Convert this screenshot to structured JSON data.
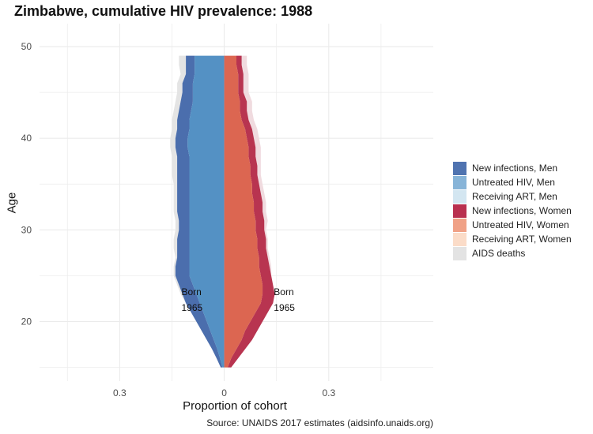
{
  "chart_data": {
    "type": "area",
    "title": "Zimbabwe, cumulative HIV prevalence: 1988",
    "xlabel": "Proportion of cohort",
    "ylabel": "Age",
    "source": "Source: UNAIDS 2017 estimates (aidsinfo.unaids.org)",
    "xlim": [
      -0.53,
      0.6
    ],
    "ylim": [
      13.5,
      52.5
    ],
    "x_ticks": [
      {
        "value": -0.3,
        "label": "0.3"
      },
      {
        "value": 0,
        "label": "0"
      },
      {
        "value": 0.3,
        "label": "0.3"
      }
    ],
    "y_ticks": [
      20,
      30,
      40,
      50
    ],
    "grid": true,
    "legend_position": "right",
    "ages": [
      15,
      16,
      17,
      18,
      19,
      20,
      21,
      22,
      23,
      24,
      25,
      26,
      27,
      28,
      29,
      30,
      31,
      32,
      33,
      34,
      35,
      36,
      37,
      38,
      39,
      40,
      41,
      42,
      43,
      44,
      45,
      46,
      47,
      48,
      49
    ],
    "men": {
      "untreated": [
        0.005,
        0.012,
        0.02,
        0.03,
        0.04,
        0.05,
        0.06,
        0.07,
        0.08,
        0.09,
        0.1,
        0.1,
        0.1,
        0.1,
        0.1,
        0.1,
        0.1,
        0.1,
        0.1,
        0.1,
        0.1,
        0.1,
        0.1,
        0.1,
        0.105,
        0.105,
        0.1,
        0.1,
        0.095,
        0.09,
        0.09,
        0.09,
        0.085,
        0.085,
        0.085
      ],
      "new_infections": [
        0.005,
        0.01,
        0.015,
        0.02,
        0.025,
        0.03,
        0.035,
        0.04,
        0.04,
        0.04,
        0.04,
        0.04,
        0.035,
        0.035,
        0.035,
        0.03,
        0.03,
        0.035,
        0.035,
        0.035,
        0.035,
        0.035,
        0.035,
        0.035,
        0.035,
        0.035,
        0.035,
        0.035,
        0.035,
        0.035,
        0.03,
        0.03,
        0.025,
        0.025,
        0.025
      ],
      "receiving_art": [
        0,
        0,
        0,
        0,
        0,
        0,
        0,
        0,
        0,
        0,
        0,
        0,
        0,
        0,
        0,
        0,
        0,
        0,
        0,
        0,
        0,
        0,
        0,
        0,
        0,
        0,
        0,
        0,
        0,
        0,
        0,
        0,
        0,
        0,
        0
      ],
      "aids_deaths": [
        0,
        0,
        0,
        0,
        0,
        0,
        0,
        0,
        0.005,
        0.005,
        0.005,
        0.005,
        0.005,
        0.01,
        0.01,
        0.01,
        0.01,
        0.01,
        0.01,
        0.01,
        0.01,
        0.015,
        0.015,
        0.015,
        0.015,
        0.015,
        0.015,
        0.015,
        0.015,
        0.015,
        0.015,
        0.015,
        0.015,
        0.02,
        0.02
      ]
    },
    "women": {
      "untreated": [
        0.01,
        0.02,
        0.035,
        0.05,
        0.06,
        0.075,
        0.09,
        0.105,
        0.11,
        0.11,
        0.105,
        0.1,
        0.1,
        0.095,
        0.095,
        0.09,
        0.09,
        0.085,
        0.085,
        0.08,
        0.08,
        0.075,
        0.075,
        0.07,
        0.07,
        0.065,
        0.06,
        0.05,
        0.045,
        0.045,
        0.04,
        0.04,
        0.04,
        0.035,
        0.035
      ],
      "new_infections": [
        0.01,
        0.02,
        0.025,
        0.03,
        0.035,
        0.035,
        0.035,
        0.035,
        0.035,
        0.03,
        0.03,
        0.03,
        0.025,
        0.025,
        0.025,
        0.025,
        0.025,
        0.025,
        0.025,
        0.025,
        0.02,
        0.02,
        0.02,
        0.02,
        0.02,
        0.02,
        0.02,
        0.02,
        0.02,
        0.02,
        0.015,
        0.015,
        0.015,
        0.015,
        0.015
      ],
      "receiving_art": [
        0,
        0,
        0,
        0,
        0,
        0,
        0,
        0,
        0,
        0,
        0,
        0,
        0,
        0,
        0,
        0,
        0,
        0,
        0,
        0,
        0,
        0,
        0,
        0,
        0,
        0,
        0,
        0,
        0,
        0,
        0,
        0,
        0,
        0,
        0
      ],
      "aids_deaths": [
        0,
        0,
        0,
        0,
        0,
        0,
        0,
        0,
        0,
        0,
        0,
        0.005,
        0.005,
        0.005,
        0.005,
        0.005,
        0.01,
        0.01,
        0.01,
        0.01,
        0.01,
        0.01,
        0.01,
        0.015,
        0.015,
        0.015,
        0.015,
        0.015,
        0.015,
        0.015,
        0.015,
        0.015,
        0.015,
        0.015,
        0.015
      ]
    },
    "annotations": [
      {
        "line1": "Born",
        "line2": "1965",
        "side": "men",
        "x": -0.1,
        "age": 22.8
      },
      {
        "line1": "Born",
        "line2": "1965",
        "side": "women",
        "x": 0.165,
        "age": 22.8
      }
    ],
    "legend": [
      {
        "label": "New infections, Men",
        "color": "#4f73b0"
      },
      {
        "label": "Untreated HIV, Men",
        "color": "#87b4d8"
      },
      {
        "label": "Receiving ART, Men",
        "color": "#d3e6f1"
      },
      {
        "label": "New infections, Women",
        "color": "#b9304f"
      },
      {
        "label": "Untreated HIV, Women",
        "color": "#f0a186"
      },
      {
        "label": "Receiving ART, Women",
        "color": "#fbdcc8"
      },
      {
        "label": "AIDS deaths",
        "color": "#e3e3e3"
      }
    ],
    "fill_colors": {
      "men_untreated": "#5491c4",
      "men_new": "#4b6ead",
      "women_untreated": "#dc6651",
      "women_new": "#b83450",
      "men_deaths": "#e4e4e4",
      "women_deaths": "#f0dbdf"
    }
  }
}
